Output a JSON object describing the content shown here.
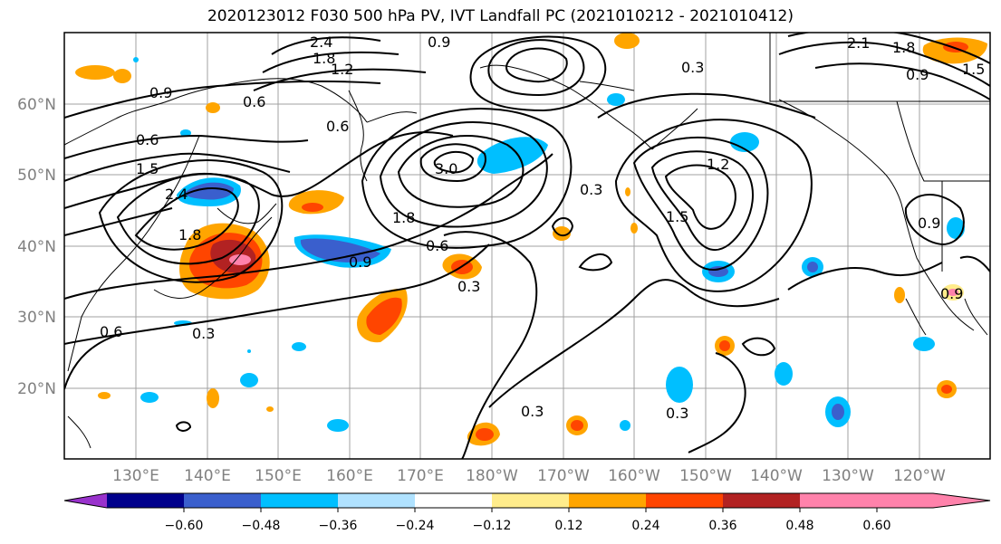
{
  "title": "2020123012 F030 500 hPa PV, IVT Landfall PC (2021010212 - 2021010412)",
  "lat_labels": [
    "60°N",
    "50°N",
    "40°N",
    "30°N",
    "20°N"
  ],
  "lon_labels": [
    "130°E",
    "140°E",
    "150°E",
    "160°E",
    "170°E",
    "180°W",
    "170°W",
    "160°W",
    "150°W",
    "140°W",
    "130°W",
    "120°W"
  ],
  "colorbar": {
    "tick_labels": [
      "−0.60",
      "−0.48",
      "−0.36",
      "−0.24",
      "−0.12",
      "0.12",
      "0.24",
      "0.36",
      "0.48",
      "0.60"
    ],
    "colors": [
      "#9932CC",
      "#00008B",
      "#3A5FCD",
      "#00BFFF",
      "#B0E2FF",
      "#FFFFFF",
      "#FFEC8B",
      "#FFA500",
      "#FF4500",
      "#B22222",
      "#FF82AB"
    ]
  },
  "contour_labels": [
    "2.4",
    "0.9",
    "1.8",
    "1.2",
    "0.9",
    "0.6",
    "0.6",
    "0.6",
    "1.5",
    "2.4",
    "3.0",
    "1.8",
    "1.8",
    "0.9",
    "0.6",
    "0.3",
    "0.3",
    "0.6",
    "0.3",
    "1.2",
    "1.5",
    "0.3",
    "0.3",
    "0.3",
    "2.1",
    "1.8",
    "1.5",
    "0.9",
    "0.9",
    "0.9"
  ]
}
